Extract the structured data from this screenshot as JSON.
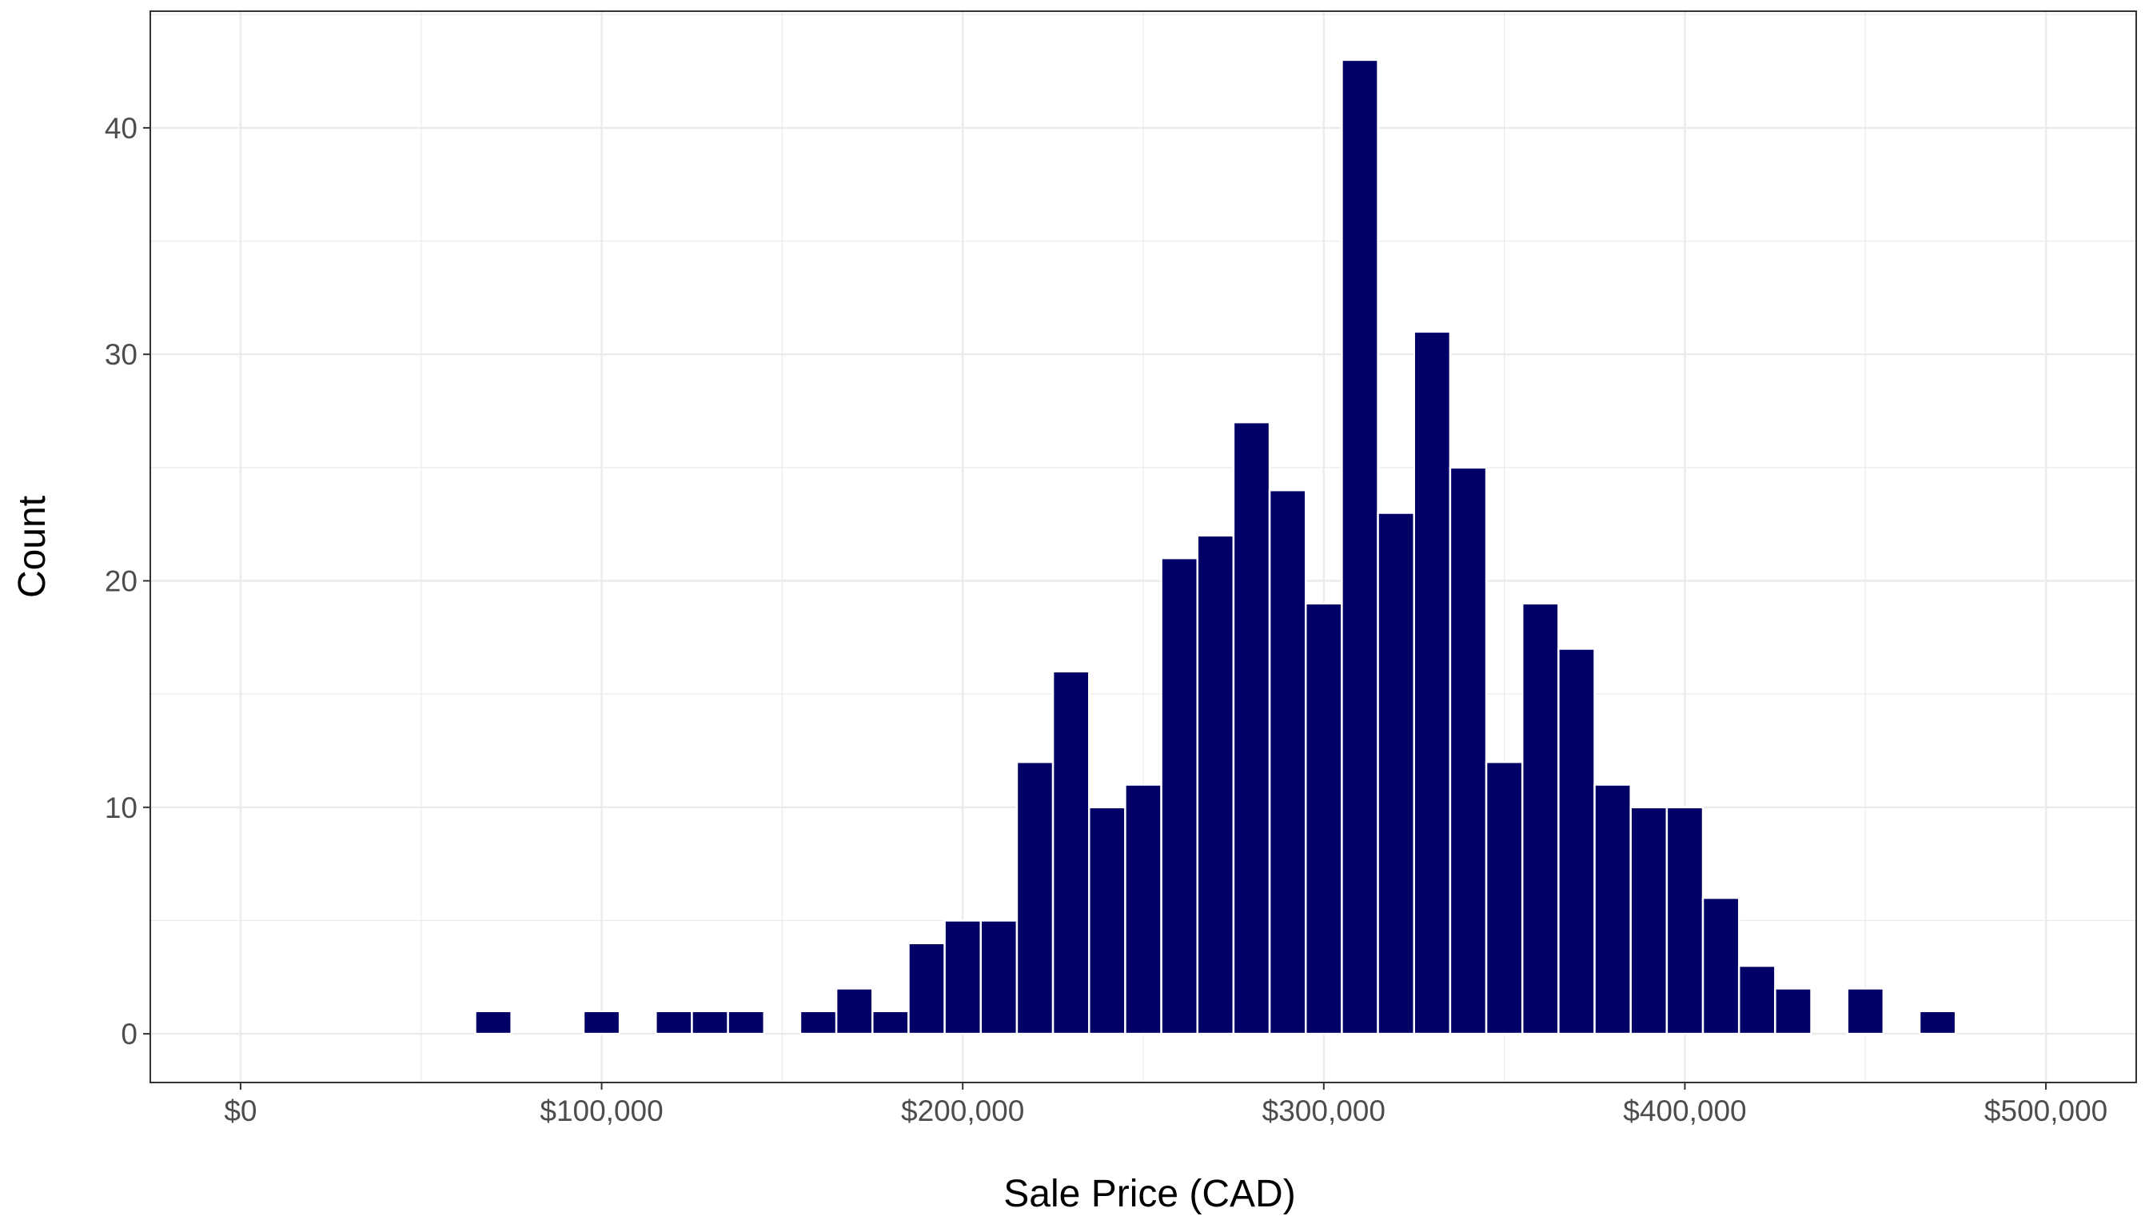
{
  "chart_data": {
    "type": "bar",
    "subtype": "histogram",
    "xlabel": "Sale Price (CAD)",
    "ylabel": "Count",
    "x_ticks": [
      {
        "value": 0,
        "label": "$0"
      },
      {
        "value": 100000,
        "label": "$100,000"
      },
      {
        "value": 200000,
        "label": "$200,000"
      },
      {
        "value": 300000,
        "label": "$300,000"
      },
      {
        "value": 400000,
        "label": "$400,000"
      },
      {
        "value": 500000,
        "label": "$500,000"
      }
    ],
    "y_ticks": [
      {
        "value": 0,
        "label": "0"
      },
      {
        "value": 10,
        "label": "10"
      },
      {
        "value": 20,
        "label": "20"
      },
      {
        "value": 30,
        "label": "30"
      },
      {
        "value": 40,
        "label": "40"
      }
    ],
    "xlim": [
      -25000,
      525000
    ],
    "ylim": [
      -2.15,
      45.15
    ],
    "bin_width": 10000,
    "bins": [
      {
        "x": 70000,
        "count": 1
      },
      {
        "x": 100000,
        "count": 1
      },
      {
        "x": 120000,
        "count": 1
      },
      {
        "x": 130000,
        "count": 1
      },
      {
        "x": 140000,
        "count": 1
      },
      {
        "x": 160000,
        "count": 1
      },
      {
        "x": 170000,
        "count": 2
      },
      {
        "x": 180000,
        "count": 1
      },
      {
        "x": 190000,
        "count": 4
      },
      {
        "x": 200000,
        "count": 5
      },
      {
        "x": 210000,
        "count": 5
      },
      {
        "x": 220000,
        "count": 12
      },
      {
        "x": 230000,
        "count": 16
      },
      {
        "x": 240000,
        "count": 10
      },
      {
        "x": 250000,
        "count": 11
      },
      {
        "x": 260000,
        "count": 21
      },
      {
        "x": 270000,
        "count": 22
      },
      {
        "x": 280000,
        "count": 27
      },
      {
        "x": 290000,
        "count": 24
      },
      {
        "x": 300000,
        "count": 19
      },
      {
        "x": 310000,
        "count": 43
      },
      {
        "x": 320000,
        "count": 23
      },
      {
        "x": 330000,
        "count": 31
      },
      {
        "x": 340000,
        "count": 25
      },
      {
        "x": 350000,
        "count": 12
      },
      {
        "x": 360000,
        "count": 19
      },
      {
        "x": 370000,
        "count": 17
      },
      {
        "x": 380000,
        "count": 11
      },
      {
        "x": 390000,
        "count": 10
      },
      {
        "x": 400000,
        "count": 10
      },
      {
        "x": 410000,
        "count": 6
      },
      {
        "x": 420000,
        "count": 3
      },
      {
        "x": 430000,
        "count": 2
      },
      {
        "x": 450000,
        "count": 2
      },
      {
        "x": 470000,
        "count": 1
      }
    ],
    "bar_color": "#000066",
    "bar_outline": "#ffffff",
    "grid": true,
    "grid_color": "#ebebeb",
    "panel_border_color": "#333333",
    "legend": "none"
  }
}
